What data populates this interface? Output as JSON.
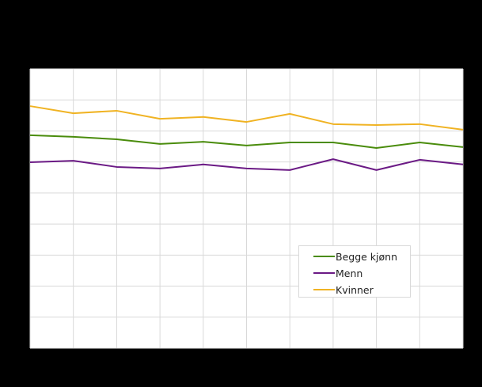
{
  "chart_data": {
    "type": "line",
    "title": "",
    "xlabel": "",
    "ylabel": "",
    "note": "Axis tick labels and title are rendered black-on-black and not legible; values expressed in gridline units (0 = bottom axis, 9 = top of plot).",
    "x": [
      1,
      2,
      3,
      4,
      5,
      6,
      7,
      8,
      9,
      10,
      11
    ],
    "ylim": [
      0,
      9
    ],
    "grid": true,
    "legend_position": "inside-lower-right",
    "series": [
      {
        "name": "Begge kjønn",
        "color": "#4A8C0C",
        "values": [
          6.86,
          6.81,
          6.73,
          6.58,
          6.65,
          6.53,
          6.63,
          6.63,
          6.45,
          6.63,
          6.48
        ]
      },
      {
        "name": "Menn",
        "color": "#6B1A85",
        "values": [
          5.99,
          6.04,
          5.84,
          5.79,
          5.92,
          5.79,
          5.74,
          6.09,
          5.74,
          6.07,
          5.92
        ]
      },
      {
        "name": "Kvinner",
        "color": "#F0B323",
        "values": [
          7.8,
          7.57,
          7.65,
          7.39,
          7.45,
          7.29,
          7.55,
          7.22,
          7.19,
          7.22,
          7.04
        ]
      }
    ]
  },
  "legend": {
    "items": [
      {
        "label": "Begge kjønn",
        "color": "#4A8C0C"
      },
      {
        "label": "Menn",
        "color": "#6B1A85"
      },
      {
        "label": "Kvinner",
        "color": "#F0B323"
      }
    ]
  },
  "colors": {
    "background": "#000000",
    "plot_background": "#ffffff",
    "grid": "#d9d9d9"
  }
}
